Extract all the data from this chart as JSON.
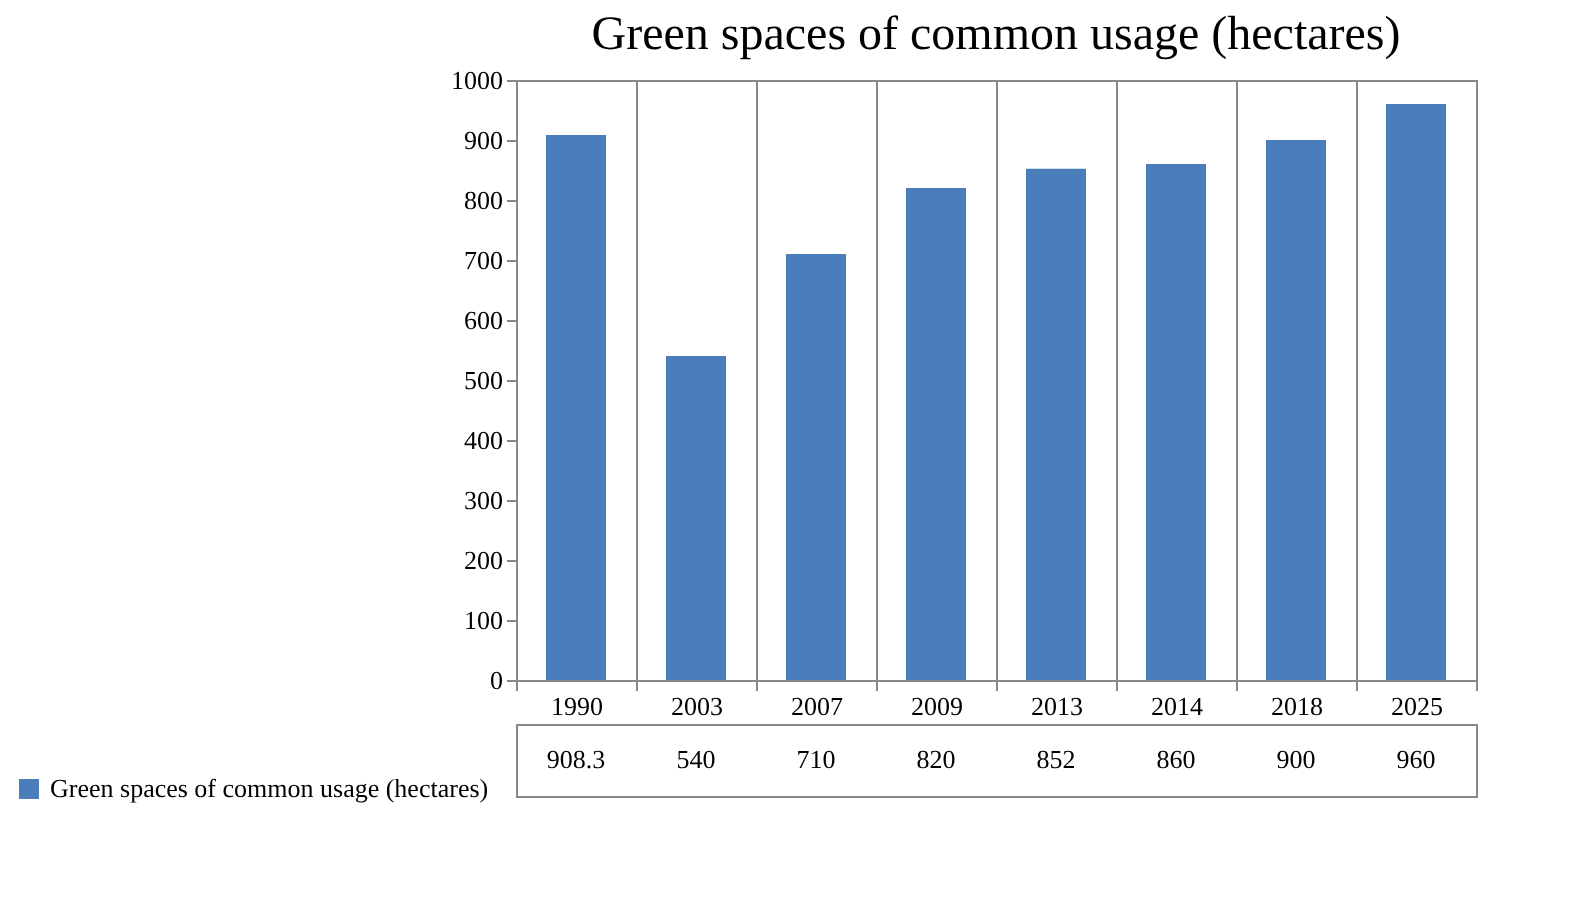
{
  "chart_data": {
    "type": "bar",
    "title": "Green spaces of common usage (hectares)",
    "categories": [
      "1990",
      "2003",
      "2007",
      "2009",
      "2013",
      "2014",
      "2018",
      "2025"
    ],
    "series": [
      {
        "name": "Green spaces of common usage (hectares)",
        "color": "#4a7ebb",
        "values": [
          908.3,
          540,
          710,
          820,
          852,
          860,
          900,
          960
        ]
      }
    ],
    "ylim": [
      0,
      1000
    ],
    "yticks": [
      0,
      100,
      200,
      300,
      400,
      500,
      600,
      700,
      800,
      900,
      1000
    ],
    "grid": false,
    "legend": "bottom left",
    "data_labels": true
  }
}
